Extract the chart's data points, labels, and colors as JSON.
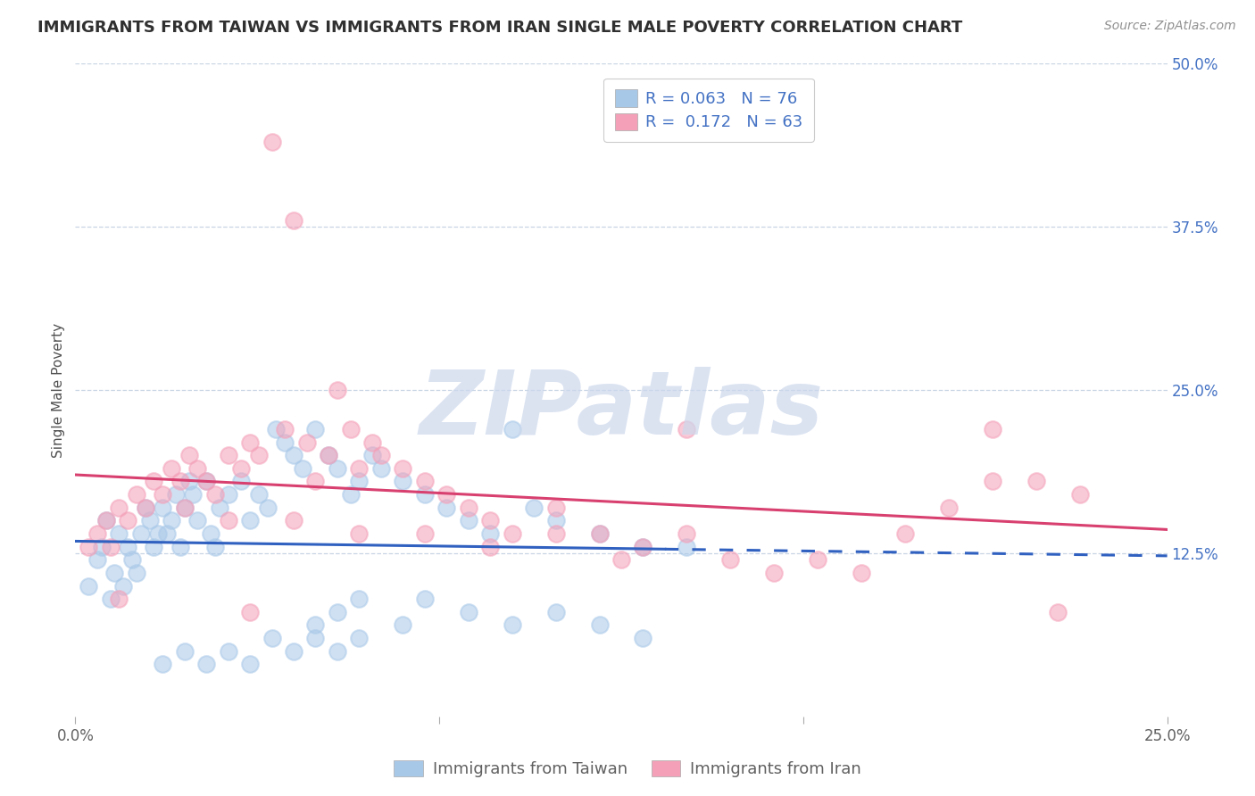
{
  "title": "IMMIGRANTS FROM TAIWAN VS IMMIGRANTS FROM IRAN SINGLE MALE POVERTY CORRELATION CHART",
  "source": "Source: ZipAtlas.com",
  "ylabel": "Single Male Poverty",
  "xlim": [
    0.0,
    0.25
  ],
  "ylim": [
    0.0,
    0.5
  ],
  "xtick_positions": [
    0.0,
    0.0833,
    0.1667,
    0.25
  ],
  "xtick_labels_show": [
    "0.0%",
    "",
    "",
    "25.0%"
  ],
  "ytick_labels_right": [
    "50.0%",
    "37.5%",
    "25.0%",
    "12.5%"
  ],
  "ytick_values_right": [
    0.5,
    0.375,
    0.25,
    0.125
  ],
  "legend_label_1": "R = 0.063   N = 76",
  "legend_label_2": "R =  0.172   N = 63",
  "legend_bottom_1": "Immigrants from Taiwan",
  "legend_bottom_2": "Immigrants from Iran",
  "taiwan_color": "#a8c8e8",
  "iran_color": "#f4a0b8",
  "taiwan_line_color": "#3060c0",
  "iran_line_color": "#d84070",
  "taiwan_R": 0.063,
  "taiwan_N": 76,
  "iran_R": 0.172,
  "iran_N": 63,
  "watermark_text": "ZIPatlas",
  "watermark_color": "#ccd8ec",
  "taiwan_x": [
    0.003,
    0.005,
    0.006,
    0.007,
    0.008,
    0.009,
    0.01,
    0.011,
    0.012,
    0.013,
    0.014,
    0.015,
    0.016,
    0.017,
    0.018,
    0.019,
    0.02,
    0.021,
    0.022,
    0.023,
    0.024,
    0.025,
    0.026,
    0.027,
    0.028,
    0.03,
    0.031,
    0.032,
    0.033,
    0.035,
    0.038,
    0.04,
    0.042,
    0.044,
    0.046,
    0.048,
    0.05,
    0.052,
    0.055,
    0.058,
    0.06,
    0.063,
    0.065,
    0.068,
    0.07,
    0.075,
    0.08,
    0.085,
    0.09,
    0.095,
    0.1,
    0.105,
    0.11,
    0.12,
    0.13,
    0.14,
    0.055,
    0.06,
    0.065,
    0.075,
    0.08,
    0.09,
    0.1,
    0.11,
    0.12,
    0.13,
    0.02,
    0.025,
    0.03,
    0.035,
    0.04,
    0.045,
    0.05,
    0.055,
    0.06,
    0.065
  ],
  "taiwan_y": [
    0.1,
    0.12,
    0.13,
    0.15,
    0.09,
    0.11,
    0.14,
    0.1,
    0.13,
    0.12,
    0.11,
    0.14,
    0.16,
    0.15,
    0.13,
    0.14,
    0.16,
    0.14,
    0.15,
    0.17,
    0.13,
    0.16,
    0.18,
    0.17,
    0.15,
    0.18,
    0.14,
    0.13,
    0.16,
    0.17,
    0.18,
    0.15,
    0.17,
    0.16,
    0.22,
    0.21,
    0.2,
    0.19,
    0.22,
    0.2,
    0.19,
    0.17,
    0.18,
    0.2,
    0.19,
    0.18,
    0.17,
    0.16,
    0.15,
    0.14,
    0.22,
    0.16,
    0.15,
    0.14,
    0.13,
    0.13,
    0.07,
    0.08,
    0.09,
    0.07,
    0.09,
    0.08,
    0.07,
    0.08,
    0.07,
    0.06,
    0.04,
    0.05,
    0.04,
    0.05,
    0.04,
    0.06,
    0.05,
    0.06,
    0.05,
    0.06
  ],
  "iran_x": [
    0.003,
    0.005,
    0.007,
    0.008,
    0.01,
    0.012,
    0.014,
    0.016,
    0.018,
    0.02,
    0.022,
    0.024,
    0.026,
    0.028,
    0.03,
    0.032,
    0.035,
    0.038,
    0.04,
    0.042,
    0.045,
    0.048,
    0.05,
    0.053,
    0.055,
    0.058,
    0.06,
    0.063,
    0.065,
    0.068,
    0.07,
    0.075,
    0.08,
    0.085,
    0.09,
    0.095,
    0.1,
    0.11,
    0.12,
    0.13,
    0.14,
    0.15,
    0.16,
    0.17,
    0.18,
    0.19,
    0.2,
    0.21,
    0.22,
    0.23,
    0.035,
    0.05,
    0.065,
    0.08,
    0.095,
    0.11,
    0.125,
    0.14,
    0.21,
    0.225,
    0.01,
    0.025,
    0.04
  ],
  "iran_y": [
    0.13,
    0.14,
    0.15,
    0.13,
    0.16,
    0.15,
    0.17,
    0.16,
    0.18,
    0.17,
    0.19,
    0.18,
    0.2,
    0.19,
    0.18,
    0.17,
    0.2,
    0.19,
    0.21,
    0.2,
    0.44,
    0.22,
    0.38,
    0.21,
    0.18,
    0.2,
    0.25,
    0.22,
    0.19,
    0.21,
    0.2,
    0.19,
    0.18,
    0.17,
    0.16,
    0.15,
    0.14,
    0.16,
    0.14,
    0.13,
    0.22,
    0.12,
    0.11,
    0.12,
    0.11,
    0.14,
    0.16,
    0.18,
    0.18,
    0.17,
    0.15,
    0.15,
    0.14,
    0.14,
    0.13,
    0.14,
    0.12,
    0.14,
    0.22,
    0.08,
    0.09,
    0.16,
    0.08
  ],
  "background_color": "#ffffff",
  "grid_color": "#c8d4e4",
  "title_fontsize": 13,
  "source_fontsize": 10,
  "axis_fontsize": 11,
  "tick_fontsize": 12,
  "title_color": "#303030",
  "source_color": "#909090",
  "axis_label_color": "#505050",
  "right_tick_color": "#4472c4"
}
